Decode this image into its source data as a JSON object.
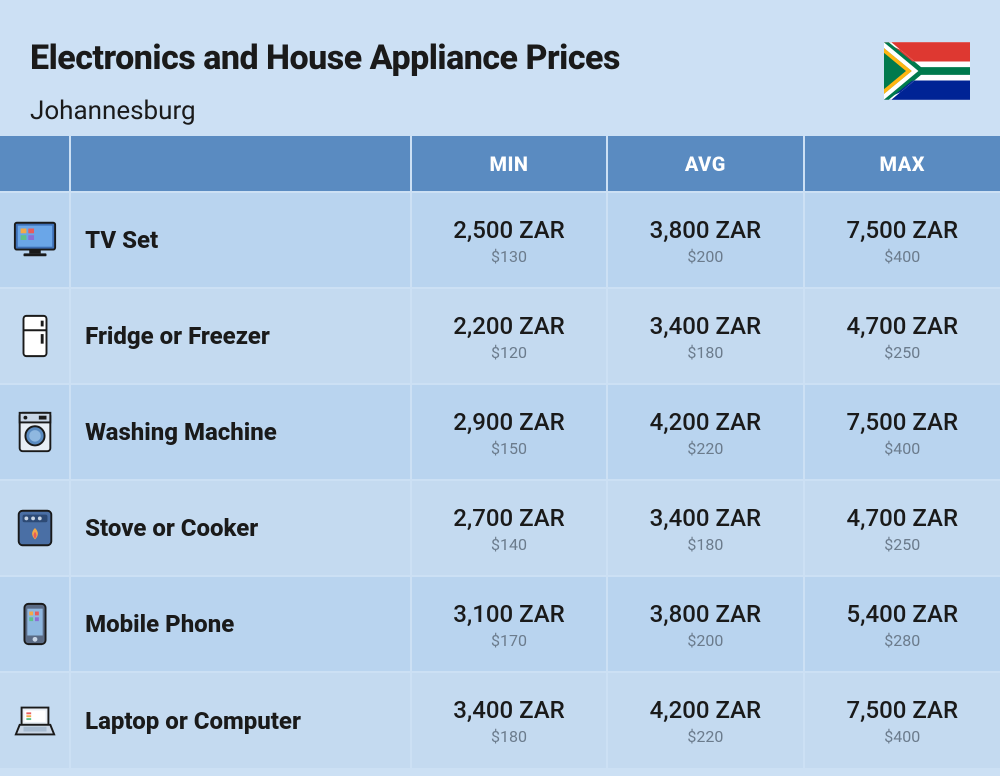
{
  "header": {
    "title": "Electronics and House Appliance Prices",
    "subtitle": "Johannesburg"
  },
  "columns": [
    "MIN",
    "AVG",
    "MAX"
  ],
  "colors": {
    "card_bg": "#cce0f4",
    "header_bg": "#5a8bc1",
    "header_text": "#ffffff",
    "row_a_bg": "#b9d4ef",
    "row_b_bg": "#c4daf0",
    "text_primary": "#1a1a1a",
    "text_secondary": "#6b7b8c",
    "border": "#cce0f4"
  },
  "typography": {
    "title_size": 34,
    "title_weight": 800,
    "subtitle_size": 26,
    "header_size": 20,
    "name_size": 24,
    "name_weight": 800,
    "zar_size": 24,
    "usd_size": 16
  },
  "rows": [
    {
      "icon": "tv",
      "name": "TV Set",
      "min": {
        "zar": "2,500 ZAR",
        "usd": "$130"
      },
      "avg": {
        "zar": "3,800 ZAR",
        "usd": "$200"
      },
      "max": {
        "zar": "7,500 ZAR",
        "usd": "$400"
      }
    },
    {
      "icon": "fridge",
      "name": "Fridge or Freezer",
      "min": {
        "zar": "2,200 ZAR",
        "usd": "$120"
      },
      "avg": {
        "zar": "3,400 ZAR",
        "usd": "$180"
      },
      "max": {
        "zar": "4,700 ZAR",
        "usd": "$250"
      }
    },
    {
      "icon": "washer",
      "name": "Washing Machine",
      "min": {
        "zar": "2,900 ZAR",
        "usd": "$150"
      },
      "avg": {
        "zar": "4,200 ZAR",
        "usd": "$220"
      },
      "max": {
        "zar": "7,500 ZAR",
        "usd": "$400"
      }
    },
    {
      "icon": "stove",
      "name": "Stove or Cooker",
      "min": {
        "zar": "2,700 ZAR",
        "usd": "$140"
      },
      "avg": {
        "zar": "3,400 ZAR",
        "usd": "$180"
      },
      "max": {
        "zar": "4,700 ZAR",
        "usd": "$250"
      }
    },
    {
      "icon": "phone",
      "name": "Mobile Phone",
      "min": {
        "zar": "3,100 ZAR",
        "usd": "$170"
      },
      "avg": {
        "zar": "3,800 ZAR",
        "usd": "$200"
      },
      "max": {
        "zar": "5,400 ZAR",
        "usd": "$280"
      }
    },
    {
      "icon": "laptop",
      "name": "Laptop or Computer",
      "min": {
        "zar": "3,400 ZAR",
        "usd": "$180"
      },
      "avg": {
        "zar": "4,200 ZAR",
        "usd": "$220"
      },
      "max": {
        "zar": "7,500 ZAR",
        "usd": "$400"
      }
    }
  ],
  "flag": {
    "colors": {
      "red": "#de3831",
      "blue": "#002395",
      "green": "#007a4d",
      "yellow": "#ffb612",
      "black": "#000000",
      "white": "#ffffff"
    }
  }
}
